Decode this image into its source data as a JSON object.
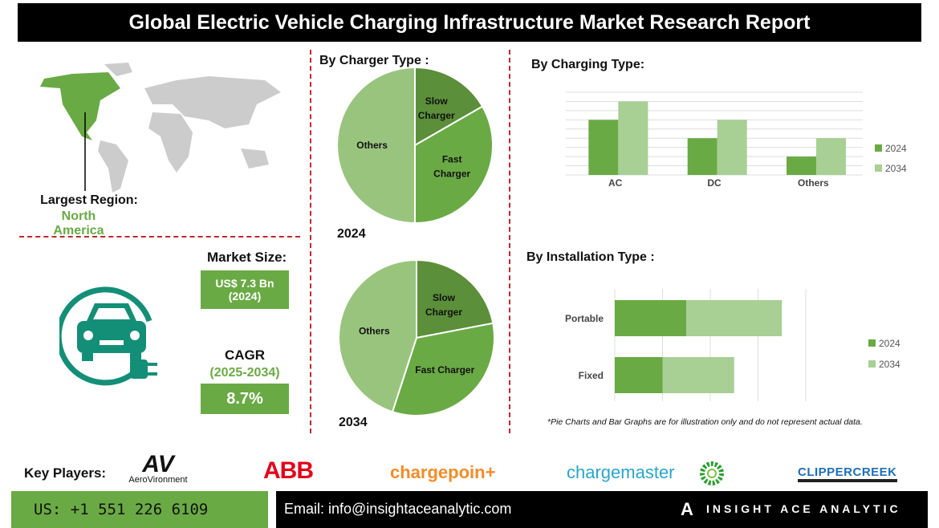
{
  "title": "Global Electric Vehicle Charging Infrastructure Market Research Report",
  "region": {
    "label": "Largest Region:",
    "value": "North America"
  },
  "market_size": {
    "label": "Market Size:",
    "value": "US$ 7.3 Bn",
    "year": "(2024)"
  },
  "cagr": {
    "label": "CAGR",
    "period": "(2025-2034)",
    "value": "8.7%"
  },
  "colors": {
    "dark_green": "#5b9a3c",
    "mid_green": "#6aaa45",
    "light_green": "#99c47e",
    "pale_green": "#a8cf94",
    "dash_red": "#c0282d"
  },
  "headings": {
    "charger_type": "By Charger Type :",
    "charging_type": "By Charging Type:",
    "installation_type": "By Installation Type :"
  },
  "note": "*Pie Charts and Bar Graphs are for illustration only and do not represent actual data.",
  "key_players": {
    "label": "Key Players:",
    "logos": [
      "AeroVironment",
      "ABB",
      "chargepoin+",
      "chargemaster",
      "bp",
      "CLIPPERCREEK"
    ]
  },
  "footer": {
    "phone": "US: +1 551 226 6109",
    "email": "Email: info@insightaceanalytic.com",
    "brand": "INSIGHT ACE ANALYTIC"
  },
  "chart_data": [
    {
      "type": "pie",
      "title": "2024",
      "labels": [
        "Slow Charger",
        "Fast Charger",
        "Others"
      ],
      "values": [
        16.7,
        33.3,
        50
      ],
      "colors": [
        "#5b8f3a",
        "#6aaa45",
        "#99c47e"
      ]
    },
    {
      "type": "pie",
      "title": "2034",
      "labels": [
        "Slow Charger",
        "Fast Charger",
        "Others"
      ],
      "values": [
        22,
        33,
        45
      ],
      "colors": [
        "#5b8f3a",
        "#6aaa45",
        "#99c47e"
      ]
    },
    {
      "type": "bar",
      "categories": [
        "AC",
        "DC",
        "Others"
      ],
      "series": [
        {
          "name": "2024",
          "values": [
            6,
            4,
            2
          ]
        },
        {
          "name": "2034",
          "values": [
            8,
            6,
            4
          ]
        }
      ],
      "ylim": [
        0,
        9
      ],
      "grid": true,
      "legend": "right"
    },
    {
      "type": "bar",
      "orientation": "horizontal",
      "stacked": true,
      "categories": [
        "Portable",
        "Fixed"
      ],
      "series": [
        {
          "name": "2024",
          "values": [
            1.5,
            1
          ]
        },
        {
          "name": "2034",
          "values": [
            2,
            1.5
          ]
        }
      ],
      "xlim": [
        0,
        4
      ],
      "grid": true,
      "legend": "right"
    }
  ]
}
